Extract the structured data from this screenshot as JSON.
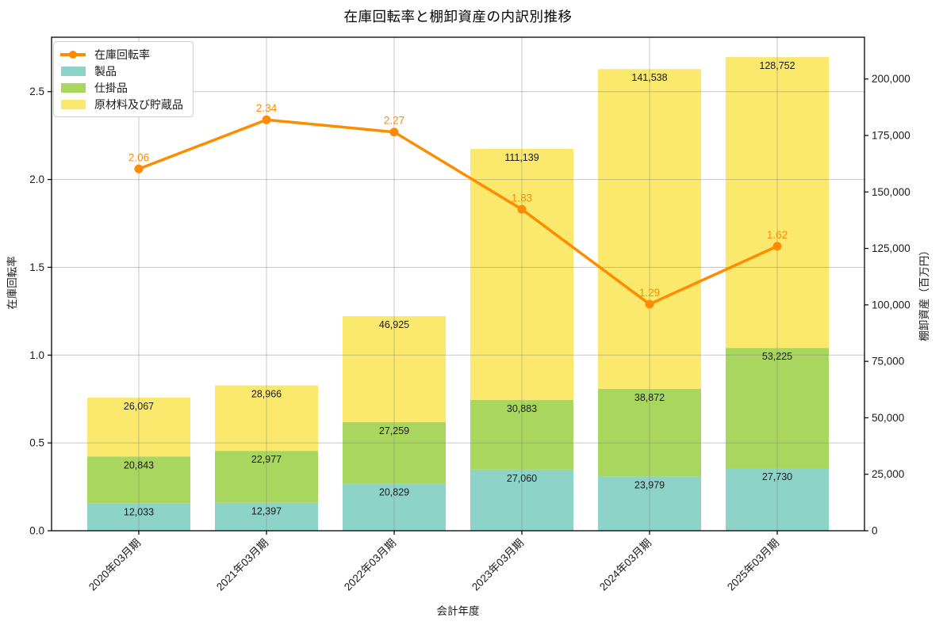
{
  "chart_data": {
    "type": "bar",
    "stacked": true,
    "overlay_line": true,
    "title": "在庫回転率と棚卸資産の内訳別推移",
    "xlabel": "会計年度",
    "ylabel_left": "在庫回転率",
    "ylabel_right": "棚卸資産（百万円）",
    "categories": [
      "2020年03月期",
      "2021年03月期",
      "2022年03月期",
      "2023年03月期",
      "2024年03月期",
      "2025年03月期"
    ],
    "bar_series": [
      {
        "name": "製品",
        "color": "#8dd3c7",
        "values": [
          12033,
          12397,
          20829,
          27060,
          23979,
          27730
        ],
        "labels": [
          "12,033",
          "12,397",
          "20,829",
          "27,060",
          "23,979",
          "27,730"
        ]
      },
      {
        "name": "仕掛品",
        "color": "#a9d65e",
        "values": [
          20843,
          22977,
          27259,
          30883,
          38872,
          53225
        ],
        "labels": [
          "20,843",
          "22,977",
          "27,259",
          "30,883",
          "38,872",
          "53,225"
        ]
      },
      {
        "name": "原材料及び貯蔵品",
        "color": "#fae96d",
        "values": [
          26067,
          28966,
          46925,
          111139,
          141538,
          128752
        ],
        "labels": [
          "26,067",
          "28,966",
          "46,925",
          "111,139",
          "141,538",
          "128,752"
        ]
      }
    ],
    "line_series": {
      "name": "在庫回転率",
      "axis": "left",
      "color": "#ff8c00",
      "values": [
        2.06,
        2.34,
        2.27,
        1.83,
        1.29,
        1.62
      ],
      "labels": [
        "2.06",
        "2.34",
        "2.27",
        "1.83",
        "1.29",
        "1.62"
      ]
    },
    "axes": {
      "left": {
        "lim": [
          0,
          2.81
        ],
        "ticks": [
          0,
          0.5,
          1.0,
          1.5,
          2.0,
          2.5
        ],
        "tick_labels": [
          "0.0",
          "0.5",
          "1.0",
          "1.5",
          "2.0",
          "2.5"
        ]
      },
      "right": {
        "lim": [
          0,
          218500
        ],
        "ticks": [
          0,
          25000,
          50000,
          75000,
          100000,
          125000,
          150000,
          175000,
          200000
        ],
        "tick_labels": [
          "0",
          "25,000",
          "50,000",
          "75,000",
          "100,000",
          "125,000",
          "150,000",
          "175,000",
          "200,000"
        ]
      }
    },
    "grid": true,
    "legend": {
      "position": "upper-left",
      "entries": [
        "在庫回転率",
        "製品",
        "仕掛品",
        "原材料及び貯蔵品"
      ]
    }
  }
}
